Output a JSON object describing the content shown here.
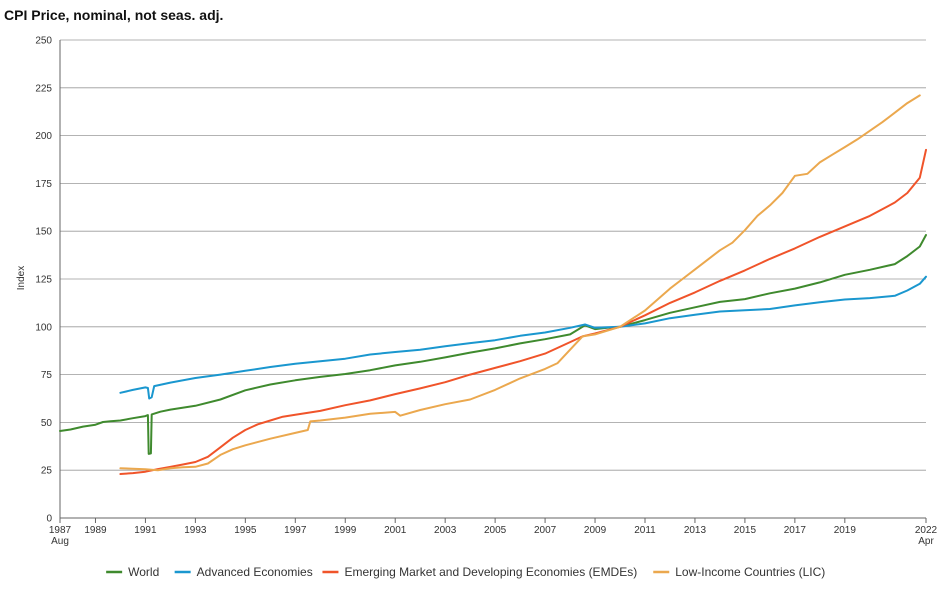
{
  "chart_data": {
    "type": "line",
    "title": "CPI Price, nominal, not seas. adj.",
    "ylabel": "Index",
    "xlabel": "",
    "ylim": [
      0,
      250
    ],
    "xlim": [
      1987.58,
      2022.25
    ],
    "y_ticks": [
      0,
      25,
      50,
      75,
      100,
      125,
      150,
      175,
      200,
      225,
      250
    ],
    "x_ticks": [
      {
        "value": 1987.58,
        "label": "1987",
        "sublabel": "Aug"
      },
      {
        "value": 1989,
        "label": "1989"
      },
      {
        "value": 1991,
        "label": "1991"
      },
      {
        "value": 1993,
        "label": "1993"
      },
      {
        "value": 1995,
        "label": "1995"
      },
      {
        "value": 1997,
        "label": "1997"
      },
      {
        "value": 1999,
        "label": "1999"
      },
      {
        "value": 2001,
        "label": "2001"
      },
      {
        "value": 2003,
        "label": "2003"
      },
      {
        "value": 2005,
        "label": "2005"
      },
      {
        "value": 2007,
        "label": "2007"
      },
      {
        "value": 2009,
        "label": "2009"
      },
      {
        "value": 2011,
        "label": "2011"
      },
      {
        "value": 2013,
        "label": "2013"
      },
      {
        "value": 2015,
        "label": "2015"
      },
      {
        "value": 2017,
        "label": "2017"
      },
      {
        "value": 2019,
        "label": "2019"
      },
      {
        "value": 2022.25,
        "label": "2022",
        "sublabel": "Apr"
      }
    ],
    "grid": true,
    "legend_position": "bottom",
    "series": [
      {
        "name": "World",
        "color": "#3f8a2e",
        "points": [
          [
            1987.58,
            45.5
          ],
          [
            1988.0,
            46.3
          ],
          [
            1988.5,
            47.8
          ],
          [
            1989.0,
            48.8
          ],
          [
            1989.3,
            50.2
          ],
          [
            1989.6,
            50.6
          ],
          [
            1990.0,
            51.0
          ],
          [
            1990.5,
            52.2
          ],
          [
            1991.0,
            53.3
          ],
          [
            1991.1,
            53.8
          ],
          [
            1991.13,
            33.5
          ],
          [
            1991.22,
            33.8
          ],
          [
            1991.25,
            54.2
          ],
          [
            1991.6,
            55.6
          ],
          [
            1992.0,
            56.7
          ],
          [
            1993.0,
            58.7
          ],
          [
            1994.0,
            62.0
          ],
          [
            1995.0,
            66.8
          ],
          [
            1996.0,
            69.8
          ],
          [
            1997.0,
            72.0
          ],
          [
            1998.0,
            73.8
          ],
          [
            1999.0,
            75.3
          ],
          [
            2000.0,
            77.3
          ],
          [
            2001.0,
            79.8
          ],
          [
            2002.0,
            81.7
          ],
          [
            2003.0,
            84.0
          ],
          [
            2004.0,
            86.5
          ],
          [
            2005.0,
            88.7
          ],
          [
            2006.0,
            91.3
          ],
          [
            2007.0,
            93.5
          ],
          [
            2008.0,
            96.0
          ],
          [
            2008.6,
            100.8
          ],
          [
            2009.0,
            98.8
          ],
          [
            2009.5,
            99.5
          ],
          [
            2010.0,
            100.0
          ],
          [
            2011.0,
            103.5
          ],
          [
            2012.0,
            107.3
          ],
          [
            2013.0,
            110.2
          ],
          [
            2014.0,
            113.0
          ],
          [
            2015.0,
            114.5
          ],
          [
            2016.0,
            117.5
          ],
          [
            2017.0,
            120.0
          ],
          [
            2018.0,
            123.2
          ],
          [
            2019.0,
            127.2
          ],
          [
            2020.0,
            129.8
          ],
          [
            2021.0,
            132.8
          ],
          [
            2021.5,
            137.0
          ],
          [
            2022.0,
            142.0
          ],
          [
            2022.25,
            148.0
          ]
        ]
      },
      {
        "name": "Advanced Economies",
        "color": "#1a97cf",
        "points": [
          [
            1990.0,
            65.5
          ],
          [
            1990.5,
            67.0
          ],
          [
            1991.0,
            68.3
          ],
          [
            1991.1,
            68.0
          ],
          [
            1991.15,
            62.5
          ],
          [
            1991.25,
            63.2
          ],
          [
            1991.35,
            69.0
          ],
          [
            1992.0,
            70.8
          ],
          [
            1993.0,
            73.2
          ],
          [
            1994.0,
            75.0
          ],
          [
            1995.0,
            77.0
          ],
          [
            1996.0,
            79.0
          ],
          [
            1997.0,
            80.7
          ],
          [
            1998.0,
            82.0
          ],
          [
            1999.0,
            83.3
          ],
          [
            2000.0,
            85.5
          ],
          [
            2001.0,
            86.8
          ],
          [
            2002.0,
            88.0
          ],
          [
            2003.0,
            89.8
          ],
          [
            2004.0,
            91.5
          ],
          [
            2005.0,
            93.0
          ],
          [
            2006.0,
            95.3
          ],
          [
            2007.0,
            97.0
          ],
          [
            2008.0,
            99.5
          ],
          [
            2008.6,
            101.2
          ],
          [
            2009.0,
            99.5
          ],
          [
            2009.5,
            99.8
          ],
          [
            2010.0,
            100.0
          ],
          [
            2011.0,
            101.8
          ],
          [
            2012.0,
            104.5
          ],
          [
            2013.0,
            106.3
          ],
          [
            2014.0,
            108.0
          ],
          [
            2015.0,
            108.7
          ],
          [
            2016.0,
            109.3
          ],
          [
            2017.0,
            111.2
          ],
          [
            2018.0,
            112.8
          ],
          [
            2019.0,
            114.3
          ],
          [
            2020.0,
            115.0
          ],
          [
            2021.0,
            116.2
          ],
          [
            2021.5,
            119.0
          ],
          [
            2022.0,
            122.5
          ],
          [
            2022.25,
            126.2
          ]
        ]
      },
      {
        "name": "Emerging Market and Developing Economies (EMDEs)",
        "color": "#f0542a",
        "points": [
          [
            1990.0,
            23.0
          ],
          [
            1990.5,
            23.5
          ],
          [
            1991.0,
            24.2
          ],
          [
            1991.5,
            25.6
          ],
          [
            1992.0,
            26.8
          ],
          [
            1992.5,
            28.0
          ],
          [
            1993.0,
            29.3
          ],
          [
            1993.5,
            32.0
          ],
          [
            1994.0,
            37.0
          ],
          [
            1994.5,
            42.0
          ],
          [
            1995.0,
            46.0
          ],
          [
            1995.5,
            49.0
          ],
          [
            1996.0,
            51.0
          ],
          [
            1996.5,
            53.0
          ],
          [
            1997.0,
            54.0
          ],
          [
            1998.0,
            56.0
          ],
          [
            1999.0,
            59.0
          ],
          [
            2000.0,
            61.5
          ],
          [
            2001.0,
            64.8
          ],
          [
            2002.0,
            67.8
          ],
          [
            2003.0,
            71.0
          ],
          [
            2004.0,
            75.0
          ],
          [
            2005.0,
            78.5
          ],
          [
            2006.0,
            82.0
          ],
          [
            2007.0,
            86.0
          ],
          [
            2008.0,
            92.0
          ],
          [
            2008.5,
            95.0
          ],
          [
            2009.0,
            96.5
          ],
          [
            2010.0,
            100.0
          ],
          [
            2011.0,
            106.0
          ],
          [
            2012.0,
            112.5
          ],
          [
            2013.0,
            118.0
          ],
          [
            2014.0,
            124.0
          ],
          [
            2015.0,
            129.5
          ],
          [
            2016.0,
            135.5
          ],
          [
            2017.0,
            141.0
          ],
          [
            2018.0,
            147.0
          ],
          [
            2019.0,
            152.5
          ],
          [
            2020.0,
            158.0
          ],
          [
            2021.0,
            165.0
          ],
          [
            2021.5,
            170.0
          ],
          [
            2022.0,
            178.0
          ],
          [
            2022.25,
            192.5
          ]
        ]
      },
      {
        "name": "Low-Income Countries (LIC)",
        "color": "#eba84e",
        "points": [
          [
            1990.0,
            26.0
          ],
          [
            1990.5,
            25.8
          ],
          [
            1991.0,
            25.5
          ],
          [
            1991.5,
            25.0
          ],
          [
            1992.0,
            26.0
          ],
          [
            1992.5,
            26.5
          ],
          [
            1993.0,
            26.8
          ],
          [
            1993.5,
            28.5
          ],
          [
            1994.0,
            33.0
          ],
          [
            1994.5,
            36.0
          ],
          [
            1995.0,
            38.0
          ],
          [
            1996.0,
            41.5
          ],
          [
            1997.0,
            44.5
          ],
          [
            1997.5,
            46.0
          ],
          [
            1997.6,
            50.5
          ],
          [
            1998.0,
            51.0
          ],
          [
            1999.0,
            52.5
          ],
          [
            2000.0,
            54.5
          ],
          [
            2001.0,
            55.5
          ],
          [
            2001.2,
            53.5
          ],
          [
            2002.0,
            56.5
          ],
          [
            2003.0,
            59.5
          ],
          [
            2004.0,
            62.0
          ],
          [
            2005.0,
            67.0
          ],
          [
            2006.0,
            73.0
          ],
          [
            2007.0,
            78.0
          ],
          [
            2007.5,
            81.0
          ],
          [
            2008.0,
            88.0
          ],
          [
            2008.5,
            95.0
          ],
          [
            2009.0,
            96.0
          ],
          [
            2010.0,
            100.0
          ],
          [
            2011.0,
            108.5
          ],
          [
            2012.0,
            120.0
          ],
          [
            2012.5,
            125.0
          ],
          [
            2013.0,
            130.0
          ],
          [
            2014.0,
            140.0
          ],
          [
            2014.5,
            144.0
          ],
          [
            2015.0,
            150.5
          ],
          [
            2015.5,
            158.0
          ],
          [
            2016.0,
            163.5
          ],
          [
            2016.5,
            170.0
          ],
          [
            2017.0,
            179.0
          ],
          [
            2017.5,
            180.0
          ],
          [
            2018.0,
            186.0
          ],
          [
            2018.5,
            190.0
          ],
          [
            2019.0,
            194.0
          ],
          [
            2019.5,
            198.0
          ],
          [
            2020.0,
            202.5
          ],
          [
            2020.5,
            207.0
          ],
          [
            2021.0,
            212.0
          ],
          [
            2021.5,
            217.0
          ],
          [
            2022.0,
            221.0
          ]
        ]
      }
    ]
  }
}
